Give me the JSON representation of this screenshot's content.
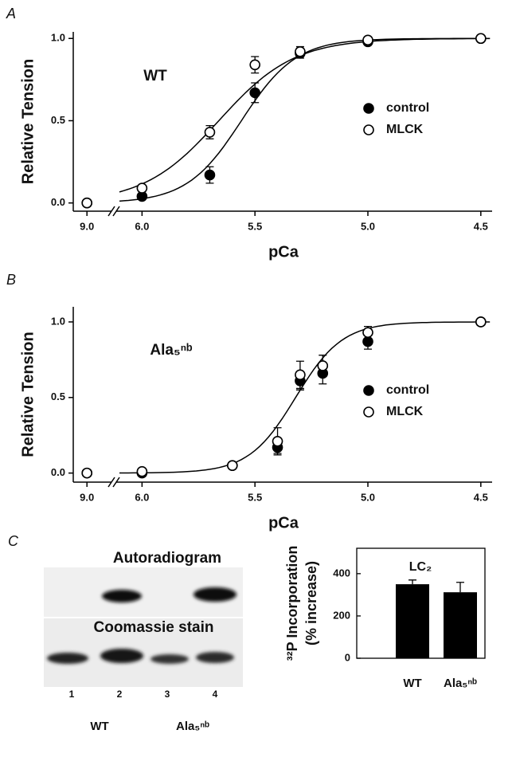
{
  "chart_data": [
    {
      "type": "scatter",
      "panel_label": "A",
      "annotation": "WT",
      "xlabel": "pCa",
      "ylabel": "Relative Tension",
      "xlim": [
        9.1,
        4.45
      ],
      "xbreak": [
        8.85,
        6.1
      ],
      "ylim": [
        -0.05,
        1.04
      ],
      "xticks": [
        {
          "value": 9,
          "label": "9.0"
        },
        {
          "value": 6,
          "label": "6.0"
        },
        5.5,
        {
          "value": 5,
          "label": "5.0"
        },
        4.5
      ],
      "yticks": [
        {
          "value": 0,
          "label": "0.0"
        },
        0.5,
        {
          "value": 1,
          "label": "1.0"
        }
      ],
      "legend": "right",
      "series": [
        {
          "name": "control",
          "color": "#000000",
          "marker": "filled",
          "x": [
            9.0,
            6.0,
            5.7,
            5.5,
            5.3,
            5.0,
            4.5
          ],
          "values": [
            0.0,
            0.04,
            0.17,
            0.67,
            0.91,
            0.98,
            1.0
          ],
          "errors": [
            null,
            null,
            0.05,
            0.06,
            0.03,
            0.02,
            null
          ],
          "fit": {
            "pCa50": 5.56,
            "nH": 3.6
          }
        },
        {
          "name": "MLCK",
          "color": "#000000",
          "marker": "open",
          "x": [
            9.0,
            6.0,
            5.7,
            5.5,
            5.3,
            5.0,
            4.5
          ],
          "values": [
            0.0,
            0.09,
            0.43,
            0.84,
            0.92,
            0.99,
            1.0
          ],
          "errors": [
            null,
            null,
            0.04,
            0.05,
            0.03,
            0.02,
            null
          ],
          "fit": {
            "pCa50": 5.66,
            "nH": 2.6
          }
        }
      ]
    },
    {
      "type": "scatter",
      "panel_label": "B",
      "annotation": "Ala₅ⁿᵇ",
      "xlabel": "pCa",
      "ylabel": "Relative Tension",
      "xlim": [
        9.1,
        4.45
      ],
      "xbreak": [
        8.85,
        6.1
      ],
      "ylim": [
        -0.06,
        1.1
      ],
      "xticks": [
        {
          "value": 9,
          "label": "9.0"
        },
        {
          "value": 6,
          "label": "6.0"
        },
        5.5,
        {
          "value": 5,
          "label": "5.0"
        },
        4.5
      ],
      "yticks": [
        {
          "value": 0,
          "label": "0.0"
        },
        0.5,
        {
          "value": 1,
          "label": "1.0"
        }
      ],
      "legend": "right",
      "fit": {
        "pCa50": 5.32,
        "nH": 4.2
      },
      "series": [
        {
          "name": "control",
          "color": "#000000",
          "marker": "filled",
          "x": [
            9.0,
            6.0,
            5.6,
            5.4,
            5.3,
            5.2,
            5.0,
            4.5
          ],
          "values": [
            0.0,
            0.0,
            0.05,
            0.17,
            0.61,
            0.66,
            0.87,
            1.0
          ],
          "errors": [
            null,
            null,
            null,
            0.04,
            0.06,
            0.07,
            0.05,
            null
          ]
        },
        {
          "name": "MLCK",
          "color": "#000000",
          "marker": "open",
          "x": [
            9.0,
            6.0,
            5.6,
            5.4,
            5.3,
            5.2,
            5.0,
            4.5
          ],
          "values": [
            0.0,
            0.01,
            0.05,
            0.21,
            0.65,
            0.71,
            0.93,
            1.0
          ],
          "errors": [
            null,
            null,
            null,
            0.09,
            0.09,
            0.07,
            0.04,
            null
          ]
        }
      ]
    },
    {
      "type": "bar",
      "title": "LC₂",
      "ylabel": [
        "³²P Incorporation",
        "(% increase)"
      ],
      "categories": [
        "WT",
        "Ala₅ⁿᵇ"
      ],
      "values": [
        350,
        312
      ],
      "errors": [
        20,
        47
      ],
      "color": "#000000",
      "ylim": [
        0,
        520
      ],
      "yticks": [
        0,
        200,
        400
      ]
    }
  ],
  "blot": {
    "panel_label": "C",
    "top_title": "Autoradiogram",
    "bottom_title": "Coomassie stain",
    "lanes": [
      "1",
      "2",
      "3",
      "4"
    ],
    "groups": [
      "WT",
      "Ala₅ⁿᵇ"
    ]
  }
}
